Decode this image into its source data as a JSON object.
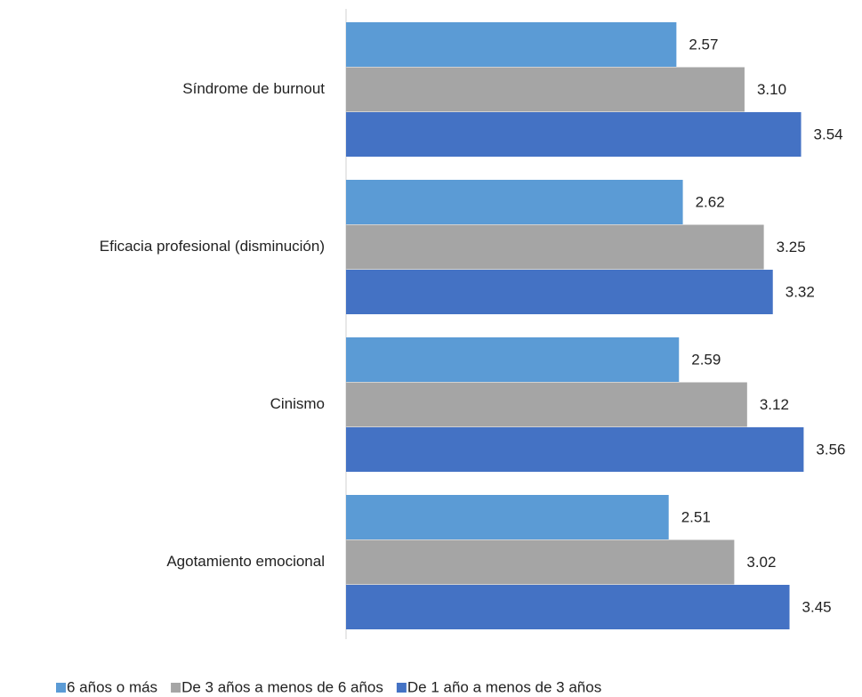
{
  "chart_data": {
    "type": "barh",
    "categories": [
      "Síndrome de burnout",
      "Eficacia profesional (disminución)",
      "Cinismo",
      "Agotamiento emocional"
    ],
    "series": [
      {
        "name": "6 años o más",
        "color": "#5b9bd5",
        "values": [
          2.57,
          2.62,
          2.59,
          2.51
        ],
        "value_labels": [
          "2.57",
          "2.62",
          "2.59",
          "2.51"
        ]
      },
      {
        "name": "De 3 años a menos de 6 años",
        "color": "#a5a5a5",
        "values": [
          3.1,
          3.25,
          3.12,
          3.02
        ],
        "value_labels": [
          "3.10",
          "3.25",
          "3.12",
          "3.02"
        ]
      },
      {
        "name": "De 1 año a menos de 3 años",
        "color": "#4472c4",
        "values": [
          3.54,
          3.32,
          3.56,
          3.45
        ],
        "value_labels": [
          "3.54",
          "3.32",
          "3.56",
          "3.45"
        ]
      }
    ],
    "xlim": [
      0,
      4
    ],
    "grid": false,
    "legend": "bottom"
  }
}
